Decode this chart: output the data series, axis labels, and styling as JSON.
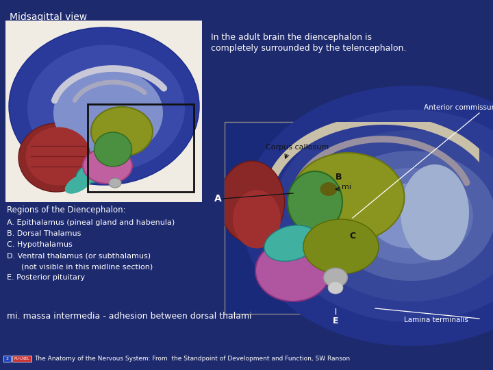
{
  "background_color": "#1e2a6e",
  "title": "Midsagittal view",
  "title_color": "#ffffff",
  "title_fontsize": 10,
  "description_line1": "In the adult brain the diencephalon is",
  "description_line2": "completely surrounded by the telencephalon.",
  "description_color": "#ffffff",
  "description_fontsize": 9,
  "regions_title": "Regions of the Diencephalon:",
  "regions_color": "#ffffff",
  "regions_fontsize": 8.5,
  "regions_list": [
    "A. Epithalamus (pineal gland and habenula)",
    "B. Dorsal Thalamus",
    "C. Hypothalamus",
    "D. Ventral thalamus (or subthalamus)",
    "      (not visible in this midline section)",
    "E. Posterior pituitary"
  ],
  "mi_text": "mi. massa intermedia - adhesion between dorsal thalami",
  "mi_fontsize": 9,
  "mi_color": "#ffffff",
  "footer_text": "The Anatomy of the Nervous System: From  the Standpoint of Development and Function, SW Ranson",
  "footer_fontsize": 6.5,
  "footer_color": "#ffffff",
  "label_anterior_commissure": "Anterior commissure",
  "label_corpus_callosum": "Corpus callosum",
  "label_lamina": "Lamina terminalis"
}
